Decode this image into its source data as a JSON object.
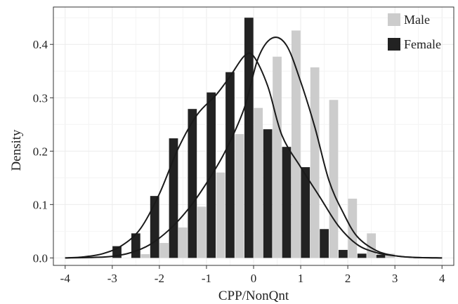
{
  "chart_data": {
    "type": "bar",
    "title": "",
    "xlabel": "CPP/NonQnt",
    "ylabel": "Density",
    "xlim": [
      -4,
      4
    ],
    "ylim": [
      0,
      0.45
    ],
    "x_ticks": [
      "-4",
      "-3",
      "-2",
      "-1",
      "0",
      "1",
      "2",
      "3",
      "4"
    ],
    "y_ticks": [
      "0.0",
      "0.1",
      "0.2",
      "0.3",
      "0.4"
    ],
    "grid": true,
    "legend_position": "top-right",
    "bin_centers": [
      -2.8,
      -2.4,
      -2.0,
      -1.6,
      -1.2,
      -0.8,
      -0.4,
      0.0,
      0.4,
      0.8,
      1.2,
      1.6,
      2.0,
      2.4,
      2.8
    ],
    "series": [
      {
        "name": "Male",
        "color": "#cccccc",
        "values": [
          0.0,
          0.007,
          0.028,
          0.057,
          0.096,
          0.16,
          0.232,
          0.281,
          0.377,
          0.426,
          0.357,
          0.296,
          0.111,
          0.046,
          0.008
        ]
      },
      {
        "name": "Female",
        "color": "#222222",
        "values": [
          0.022,
          0.046,
          0.116,
          0.224,
          0.279,
          0.31,
          0.348,
          0.45,
          0.241,
          0.208,
          0.17,
          0.054,
          0.015,
          0.008,
          0.006
        ]
      }
    ],
    "density_curves": [
      {
        "name": "Female density",
        "x": [
          -4,
          -3.6,
          -3.2,
          -2.8,
          -2.4,
          -2.0,
          -1.6,
          -1.2,
          -0.8,
          -0.5,
          -0.2,
          0.0,
          0.3,
          0.6,
          1.0,
          1.4,
          1.8,
          2.2,
          2.6,
          3.0,
          3.4,
          4.0
        ],
        "y": [
          0.0,
          0.002,
          0.008,
          0.023,
          0.055,
          0.12,
          0.205,
          0.268,
          0.305,
          0.34,
          0.378,
          0.378,
          0.322,
          0.23,
          0.17,
          0.115,
          0.06,
          0.025,
          0.01,
          0.004,
          0.001,
          0.0
        ]
      },
      {
        "name": "Male density",
        "x": [
          -4,
          -3.4,
          -3.0,
          -2.6,
          -2.2,
          -1.8,
          -1.4,
          -1.0,
          -0.6,
          -0.2,
          0.1,
          0.4,
          0.7,
          1.0,
          1.3,
          1.6,
          1.9,
          2.2,
          2.6,
          3.0,
          3.4,
          4.0
        ],
        "y": [
          0.0,
          0.001,
          0.003,
          0.01,
          0.025,
          0.052,
          0.09,
          0.14,
          0.2,
          0.28,
          0.375,
          0.412,
          0.398,
          0.33,
          0.245,
          0.145,
          0.085,
          0.04,
          0.014,
          0.004,
          0.001,
          0.0
        ]
      }
    ]
  }
}
